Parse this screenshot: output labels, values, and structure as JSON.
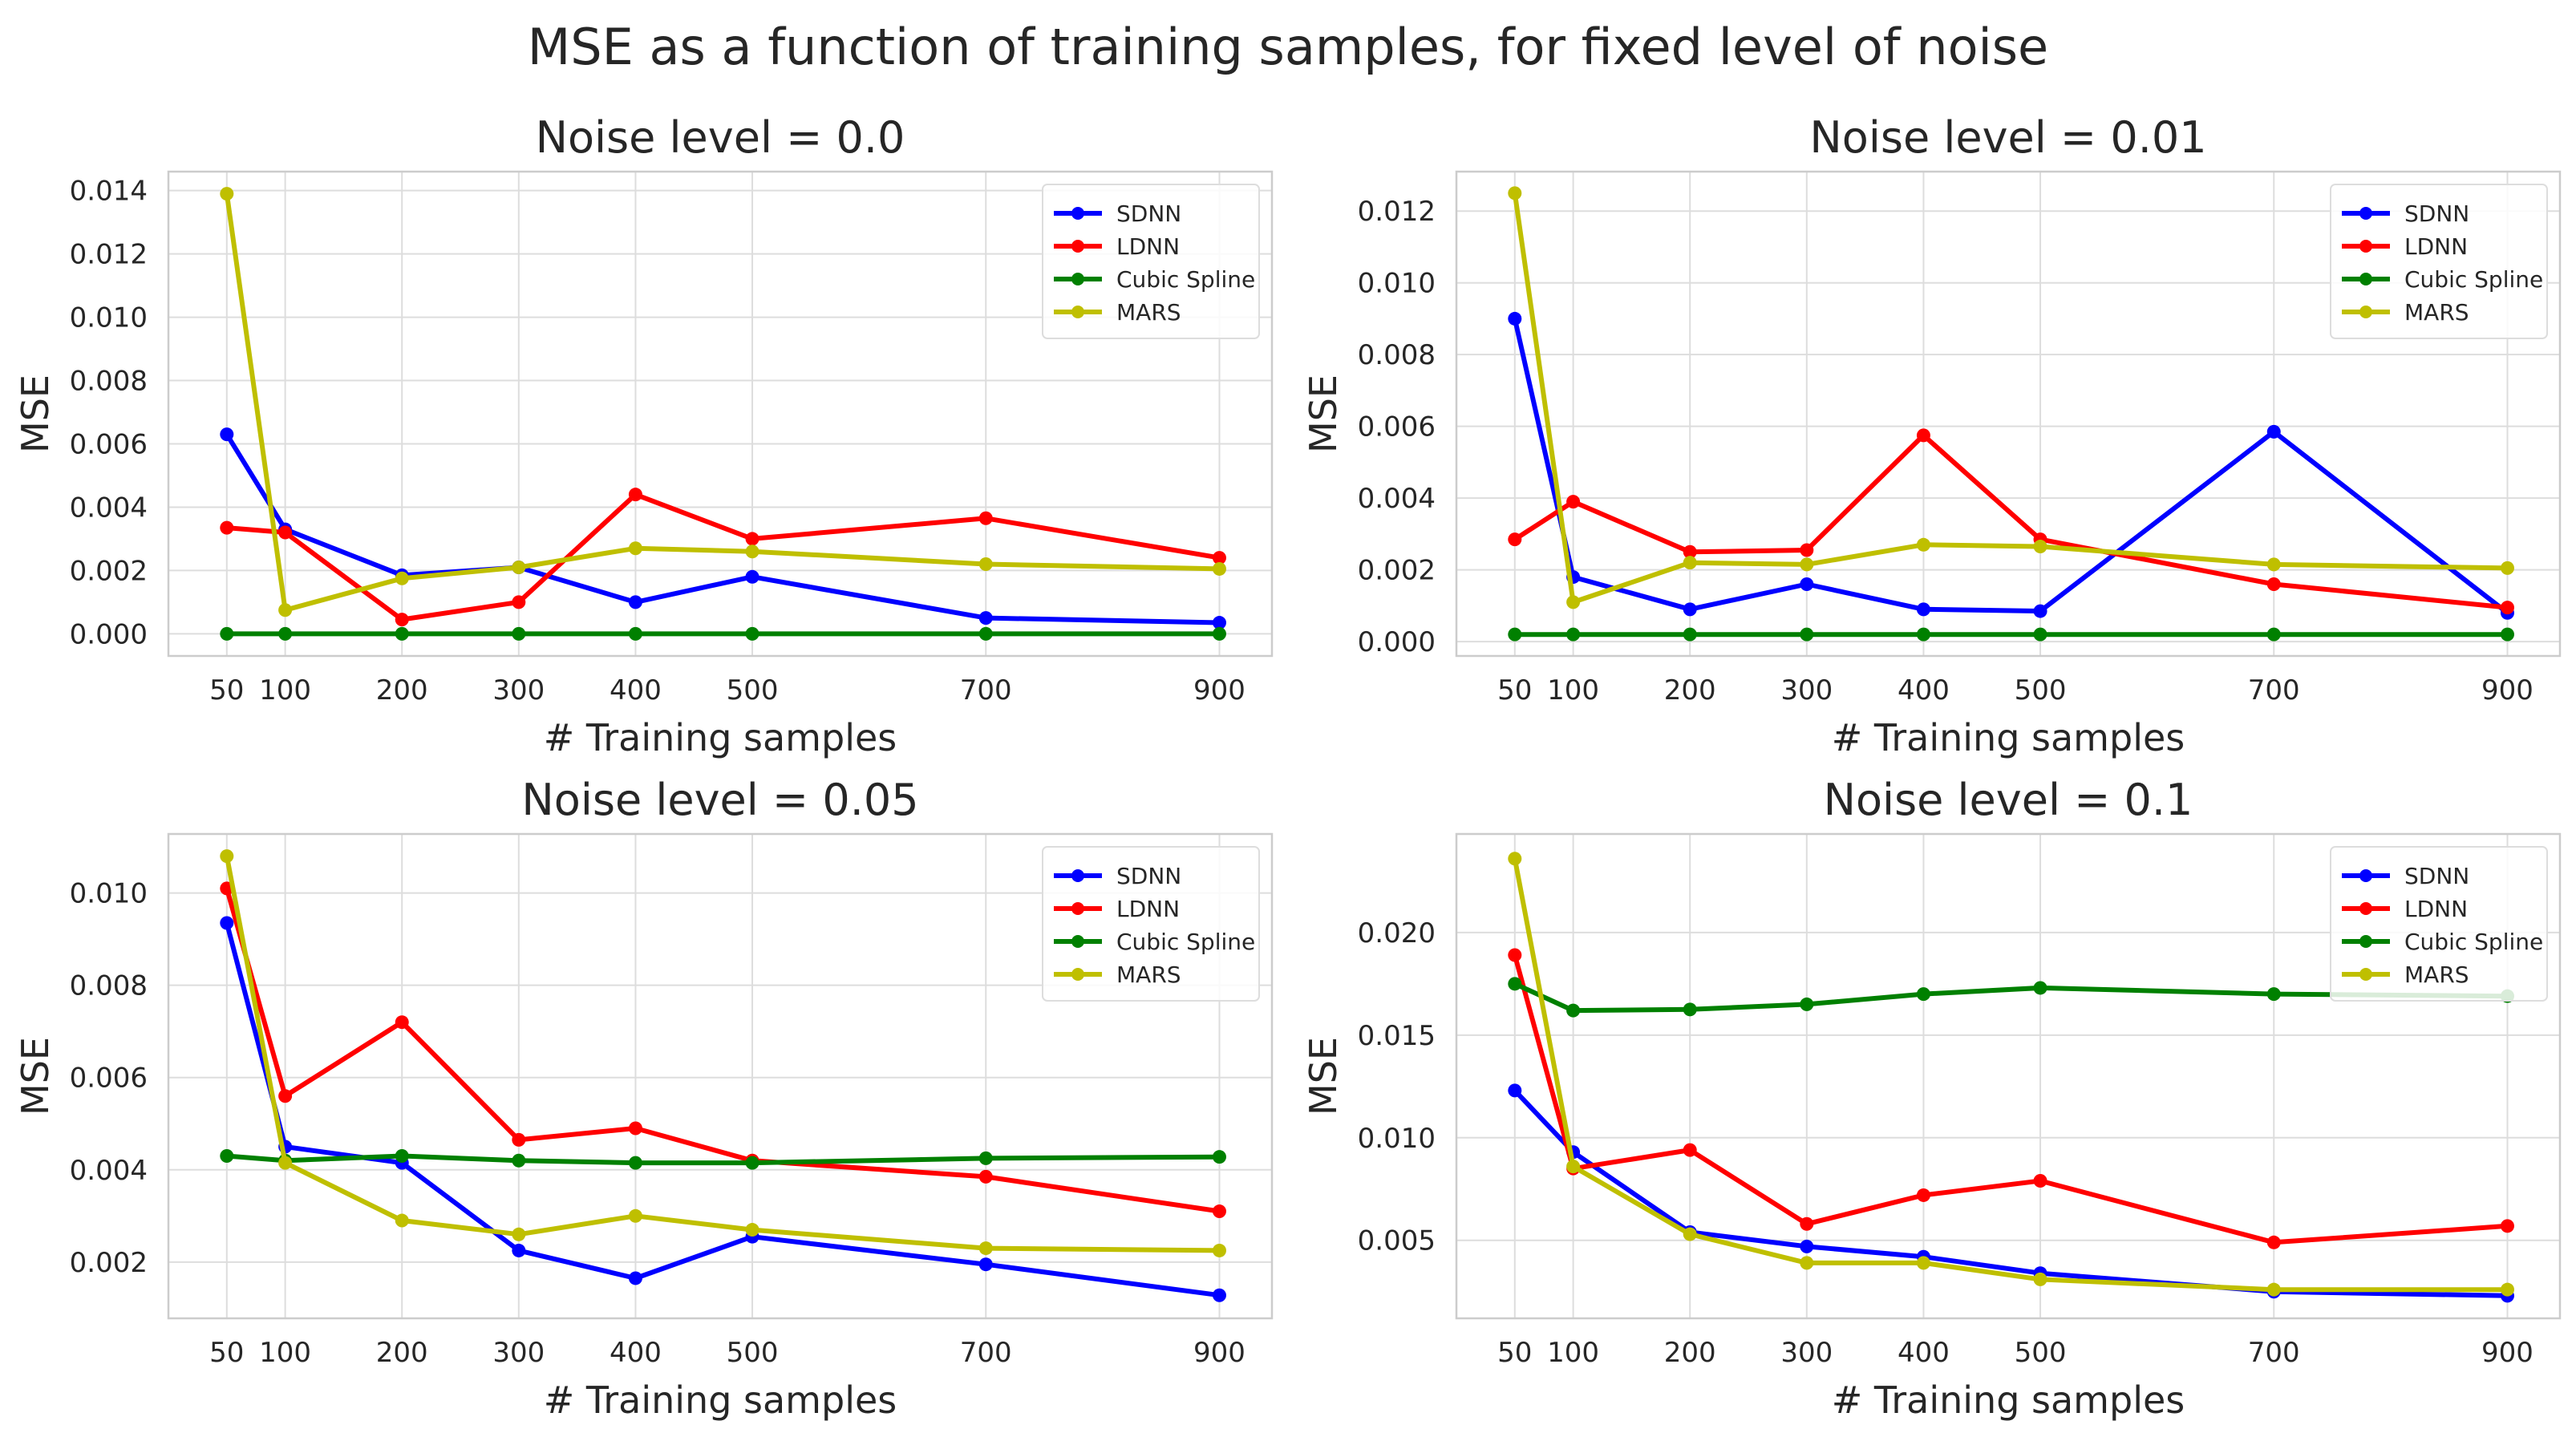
{
  "suptitle": "MSE as a function of training samples, for fixed level of noise",
  "series_colors": {
    "SDNN": "#0000ff",
    "LDNN": "#ff0000",
    "Cubic Spline": "#008000",
    "MARS": "#bfbf00"
  },
  "chart_data": [
    {
      "type": "line",
      "title": "Noise level = 0.0",
      "xlabel": "# Training samples",
      "ylabel": "MSE",
      "x": [
        50,
        100,
        200,
        300,
        400,
        500,
        700,
        900
      ],
      "xticks": [
        50,
        100,
        200,
        300,
        400,
        500,
        700,
        900
      ],
      "xlim": [
        0,
        945
      ],
      "yticks": [
        0.0,
        0.002,
        0.004,
        0.006,
        0.008,
        0.01,
        0.012,
        0.014
      ],
      "ytick_labels": [
        "0.000",
        "0.002",
        "0.004",
        "0.006",
        "0.008",
        "0.010",
        "0.012",
        "0.014"
      ],
      "ylim": [
        -0.0007,
        0.0146
      ],
      "legend": "top-right",
      "series": [
        {
          "name": "SDNN",
          "values": [
            0.0063,
            0.0033,
            0.00185,
            0.0021,
            0.001,
            0.0018,
            0.0005,
            0.00035
          ]
        },
        {
          "name": "LDNN",
          "values": [
            0.00335,
            0.0032,
            0.00045,
            0.001,
            0.0044,
            0.003,
            0.00365,
            0.0024
          ]
        },
        {
          "name": "Cubic Spline",
          "values": [
            0.0,
            0.0,
            0.0,
            0.0,
            0.0,
            0.0,
            0.0,
            0.0
          ]
        },
        {
          "name": "MARS",
          "values": [
            0.0139,
            0.00075,
            0.00175,
            0.0021,
            0.0027,
            0.0026,
            0.0022,
            0.00205
          ]
        }
      ]
    },
    {
      "type": "line",
      "title": "Noise level = 0.01",
      "xlabel": "# Training samples",
      "ylabel": "MSE",
      "x": [
        50,
        100,
        200,
        300,
        400,
        500,
        700,
        900
      ],
      "xticks": [
        50,
        100,
        200,
        300,
        400,
        500,
        700,
        900
      ],
      "xlim": [
        0,
        945
      ],
      "yticks": [
        0.0,
        0.002,
        0.004,
        0.006,
        0.008,
        0.01,
        0.012
      ],
      "ytick_labels": [
        "0.000",
        "0.002",
        "0.004",
        "0.006",
        "0.008",
        "0.010",
        "0.012"
      ],
      "ylim": [
        -0.0004,
        0.0131
      ],
      "legend": "top-right",
      "series": [
        {
          "name": "SDNN",
          "values": [
            0.009,
            0.0018,
            0.0009,
            0.0016,
            0.0009,
            0.00085,
            0.00585,
            0.0008
          ]
        },
        {
          "name": "LDNN",
          "values": [
            0.00285,
            0.0039,
            0.0025,
            0.00255,
            0.00575,
            0.00285,
            0.0016,
            0.00095
          ]
        },
        {
          "name": "Cubic Spline",
          "values": [
            0.0002,
            0.0002,
            0.0002,
            0.0002,
            0.0002,
            0.0002,
            0.0002,
            0.0002
          ]
        },
        {
          "name": "MARS",
          "values": [
            0.0125,
            0.0011,
            0.0022,
            0.00215,
            0.0027,
            0.00265,
            0.00215,
            0.00205
          ]
        }
      ]
    },
    {
      "type": "line",
      "title": "Noise level = 0.05",
      "xlabel": "# Training samples",
      "ylabel": "MSE",
      "x": [
        50,
        100,
        200,
        300,
        400,
        500,
        700,
        900
      ],
      "xticks": [
        50,
        100,
        200,
        300,
        400,
        500,
        700,
        900
      ],
      "xlim": [
        0,
        945
      ],
      "yticks": [
        0.002,
        0.004,
        0.006,
        0.008,
        0.01
      ],
      "ytick_labels": [
        "0.002",
        "0.004",
        "0.006",
        "0.008",
        "0.010"
      ],
      "ylim": [
        0.00078,
        0.01128
      ],
      "legend": "top-right",
      "series": [
        {
          "name": "SDNN",
          "values": [
            0.00935,
            0.0045,
            0.00415,
            0.00225,
            0.00165,
            0.00255,
            0.00195,
            0.00128
          ]
        },
        {
          "name": "LDNN",
          "values": [
            0.0101,
            0.0056,
            0.0072,
            0.00465,
            0.0049,
            0.0042,
            0.00385,
            0.0031
          ]
        },
        {
          "name": "Cubic Spline",
          "values": [
            0.0043,
            0.0042,
            0.0043,
            0.0042,
            0.00415,
            0.00415,
            0.00425,
            0.00428
          ]
        },
        {
          "name": "MARS",
          "values": [
            0.0108,
            0.00415,
            0.0029,
            0.0026,
            0.003,
            0.0027,
            0.0023,
            0.00225
          ]
        }
      ]
    },
    {
      "type": "line",
      "title": "Noise level = 0.1",
      "xlabel": "# Training samples",
      "ylabel": "MSE",
      "x": [
        50,
        100,
        200,
        300,
        400,
        500,
        700,
        900
      ],
      "xticks": [
        50,
        100,
        200,
        300,
        400,
        500,
        700,
        900
      ],
      "xlim": [
        0,
        945
      ],
      "yticks": [
        0.005,
        0.01,
        0.015,
        0.02
      ],
      "ytick_labels": [
        "0.005",
        "0.010",
        "0.015",
        "0.020"
      ],
      "ylim": [
        0.0012,
        0.0248
      ],
      "legend": "top-right",
      "series": [
        {
          "name": "SDNN",
          "values": [
            0.0123,
            0.0093,
            0.0054,
            0.0047,
            0.0042,
            0.0034,
            0.0025,
            0.0023
          ]
        },
        {
          "name": "LDNN",
          "values": [
            0.0189,
            0.0085,
            0.0094,
            0.0058,
            0.0072,
            0.0079,
            0.0049,
            0.0057
          ]
        },
        {
          "name": "Cubic Spline",
          "values": [
            0.0175,
            0.0162,
            0.01625,
            0.0165,
            0.017,
            0.0173,
            0.017,
            0.0169
          ]
        },
        {
          "name": "MARS",
          "values": [
            0.0236,
            0.0086,
            0.0053,
            0.0039,
            0.0039,
            0.0031,
            0.0026,
            0.0026
          ]
        }
      ]
    }
  ]
}
